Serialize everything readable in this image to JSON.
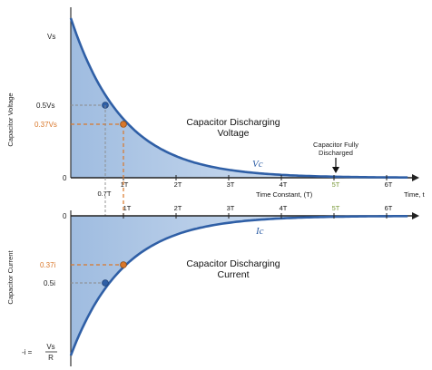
{
  "labels": {
    "top": {
      "y_axis": "Capacitor Voltage",
      "vs": "Vs",
      "half": "0.5Vs",
      "tau_level": "0.37Vs",
      "zero": "0",
      "title_line1": "Capacitor Discharging",
      "title_line2": "Voltage",
      "curve": "Vc",
      "note_line1": "Capacitor Fully",
      "note_line2": "Discharged",
      "x_axis": "Time Constant, (T)",
      "x_axis_right": "Time, t",
      "ticks": [
        "1T",
        "2T",
        "3T",
        "4T",
        "5T",
        "6T"
      ],
      "half_time": "0.7T"
    },
    "bottom": {
      "y_axis": "Capacitor Current",
      "zero": "0",
      "tau_level": "0.37i",
      "half": "0.5i",
      "title_line1": "Capacitor Discharging",
      "title_line2": "Current",
      "curve": "Ic",
      "ticks": [
        "1T",
        "2T",
        "3T",
        "4T",
        "5T",
        "6T"
      ],
      "initial_prefix": "-i =",
      "initial_num": "Vs",
      "initial_den": "R"
    }
  },
  "colors": {
    "curve": "#2f5fa6",
    "fill": "#c9d9ee",
    "marker_half": "#2f5fa6",
    "marker_tau": "#d9772a",
    "guide_tau": "#d9772a",
    "guide_half": "#8a8a8a"
  }
}
